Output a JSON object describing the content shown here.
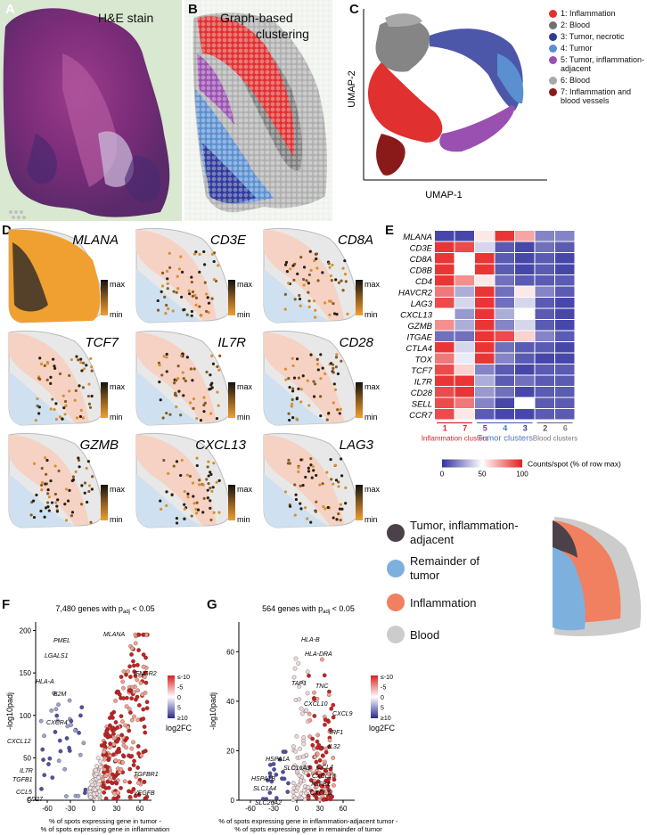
{
  "panelA": {
    "letter": "A",
    "title": "H&E stain"
  },
  "panelB": {
    "letter": "B",
    "title_line1": "Graph-based",
    "title_line2": "clustering"
  },
  "panelC": {
    "letter": "C",
    "xlabel": "UMAP-1",
    "ylabel": "UMAP-2",
    "legend": [
      {
        "label": "1: Inflammation",
        "color": "#e03030"
      },
      {
        "label": "2: Blood",
        "color": "#707070"
      },
      {
        "label": "3: Tumor, necrotic",
        "color": "#2e3a9a"
      },
      {
        "label": "4: Tumor",
        "color": "#5a8fd0"
      },
      {
        "label": "5: Tumor, inflammation-adjacent",
        "color": "#9a50b0"
      },
      {
        "label": "6: Blood",
        "color": "#a8a8a8"
      },
      {
        "label": "7: Inflammation and blood vessels",
        "color": "#8a1a1a"
      }
    ]
  },
  "panelD": {
    "letter": "D",
    "genes": [
      "MLANA",
      "CD3E",
      "CD8A",
      "TCF7",
      "IL7R",
      "CD28",
      "GZMB",
      "CXCL13",
      "LAG3"
    ],
    "scale_max": "max",
    "scale_min": "min"
  },
  "panelE": {
    "letter": "E",
    "rows": [
      "MLANA",
      "CD3E",
      "CD8A",
      "CD8B",
      "CD4",
      "HAVCR2",
      "LAG3",
      "CXCL13",
      "GZMB",
      "ITGAE",
      "CTLA4",
      "TOX",
      "TCF7",
      "IL7R",
      "CD28",
      "SELL",
      "CCR7"
    ],
    "columns": [
      "1",
      "7",
      "5",
      "4",
      "3",
      "2",
      "6"
    ],
    "groups": [
      {
        "label": "Inflammation clusters",
        "color": "#d42a2a"
      },
      {
        "label": "Tumor clusters",
        "color": "#4a78c0"
      },
      {
        "label": "Blood clusters",
        "color": "#777777"
      }
    ],
    "colorbar_title": "Counts/spot (% of row max)",
    "colorbar_ticks": [
      "0",
      "50",
      "100"
    ],
    "values": [
      [
        5,
        5,
        55,
        95,
        70,
        20,
        20
      ],
      [
        95,
        90,
        40,
        10,
        5,
        15,
        10
      ],
      [
        95,
        50,
        95,
        10,
        5,
        10,
        5
      ],
      [
        95,
        50,
        95,
        10,
        5,
        10,
        5
      ],
      [
        95,
        75,
        55,
        15,
        10,
        10,
        10
      ],
      [
        80,
        30,
        95,
        15,
        55,
        20,
        10
      ],
      [
        90,
        40,
        95,
        15,
        40,
        10,
        5
      ],
      [
        50,
        25,
        95,
        30,
        50,
        10,
        5
      ],
      [
        75,
        30,
        95,
        20,
        40,
        10,
        5
      ],
      [
        15,
        15,
        95,
        90,
        60,
        20,
        10
      ],
      [
        95,
        40,
        95,
        15,
        10,
        10,
        5
      ],
      [
        80,
        45,
        95,
        20,
        10,
        5,
        5
      ],
      [
        90,
        60,
        20,
        10,
        5,
        10,
        10
      ],
      [
        95,
        95,
        30,
        10,
        15,
        10,
        10
      ],
      [
        90,
        95,
        25,
        15,
        5,
        10,
        10
      ],
      [
        90,
        80,
        20,
        5,
        50,
        10,
        10
      ],
      [
        90,
        55,
        10,
        5,
        5,
        10,
        10
      ]
    ]
  },
  "regions": {
    "legend": [
      {
        "label_line1": "Tumor, inflammation-",
        "label_line2": "adjacent",
        "color": "#4a4248"
      },
      {
        "label_line1": "Remainder of",
        "label_line2": "tumor",
        "color": "#7eb0de"
      },
      {
        "label_line1": "Inflammation",
        "label_line2": "",
        "color": "#f08060"
      },
      {
        "label_line1": "Blood",
        "label_line2": "",
        "color": "#cccccc"
      }
    ]
  },
  "panelF": {
    "letter": "F",
    "title_pre": "7,480 genes with p",
    "title_sub": "adj",
    "title_post": " < 0.05",
    "ylabel": "-log10padj",
    "xlabel_line1": "% of spots expressing gene in tumor -",
    "xlabel_line2": "% of spots expressing gene in inflammation",
    "xticks": [
      "-60",
      "-30",
      "0",
      "30",
      "60"
    ],
    "yticks": [
      "0",
      "50",
      "100",
      "150",
      "200"
    ],
    "legend_ticks": [
      "≤-10",
      "-5",
      "0",
      "5",
      "≥10"
    ],
    "legend_title": "log2FC",
    "labels": [
      "PMEL",
      "MLANA",
      "LGALS1",
      "HLA-A",
      "B2M",
      "IFNGR2",
      "CXCL12",
      "CXCR4",
      "TGFBR1",
      "IL7R",
      "TGFB1",
      "CCL5",
      "CD27",
      "VEGFB"
    ]
  },
  "panelG": {
    "letter": "G",
    "title_pre": "564 genes with p",
    "title_sub": "adj",
    "title_post": " < 0.05",
    "ylabel": "-log10padj",
    "xlabel_line1": "% of spots expressing gene in inflammation-adjacent tumor -",
    "xlabel_line2": "% of spots expressing gene in remainder of tumor",
    "xticks": [
      "-60",
      "-30",
      "0",
      "30",
      "60"
    ],
    "yticks": [
      "0",
      "20",
      "40",
      "60"
    ],
    "legend_ticks": [
      "≤-10",
      "-5",
      "0",
      "5",
      "≥10"
    ],
    "legend_title": "log2FC",
    "labels": [
      "HLA-B",
      "HLA-DRA",
      "TAP1",
      "TNC",
      "CXCL10",
      "CXCL9",
      "IRF1",
      "IL32",
      "HSPA1A",
      "HSPA1B",
      "SLC16A3",
      "CCL4",
      "CXCL13",
      "SLC1A4",
      "TGFB1",
      "CXCL11",
      "SLC26A2"
    ]
  }
}
